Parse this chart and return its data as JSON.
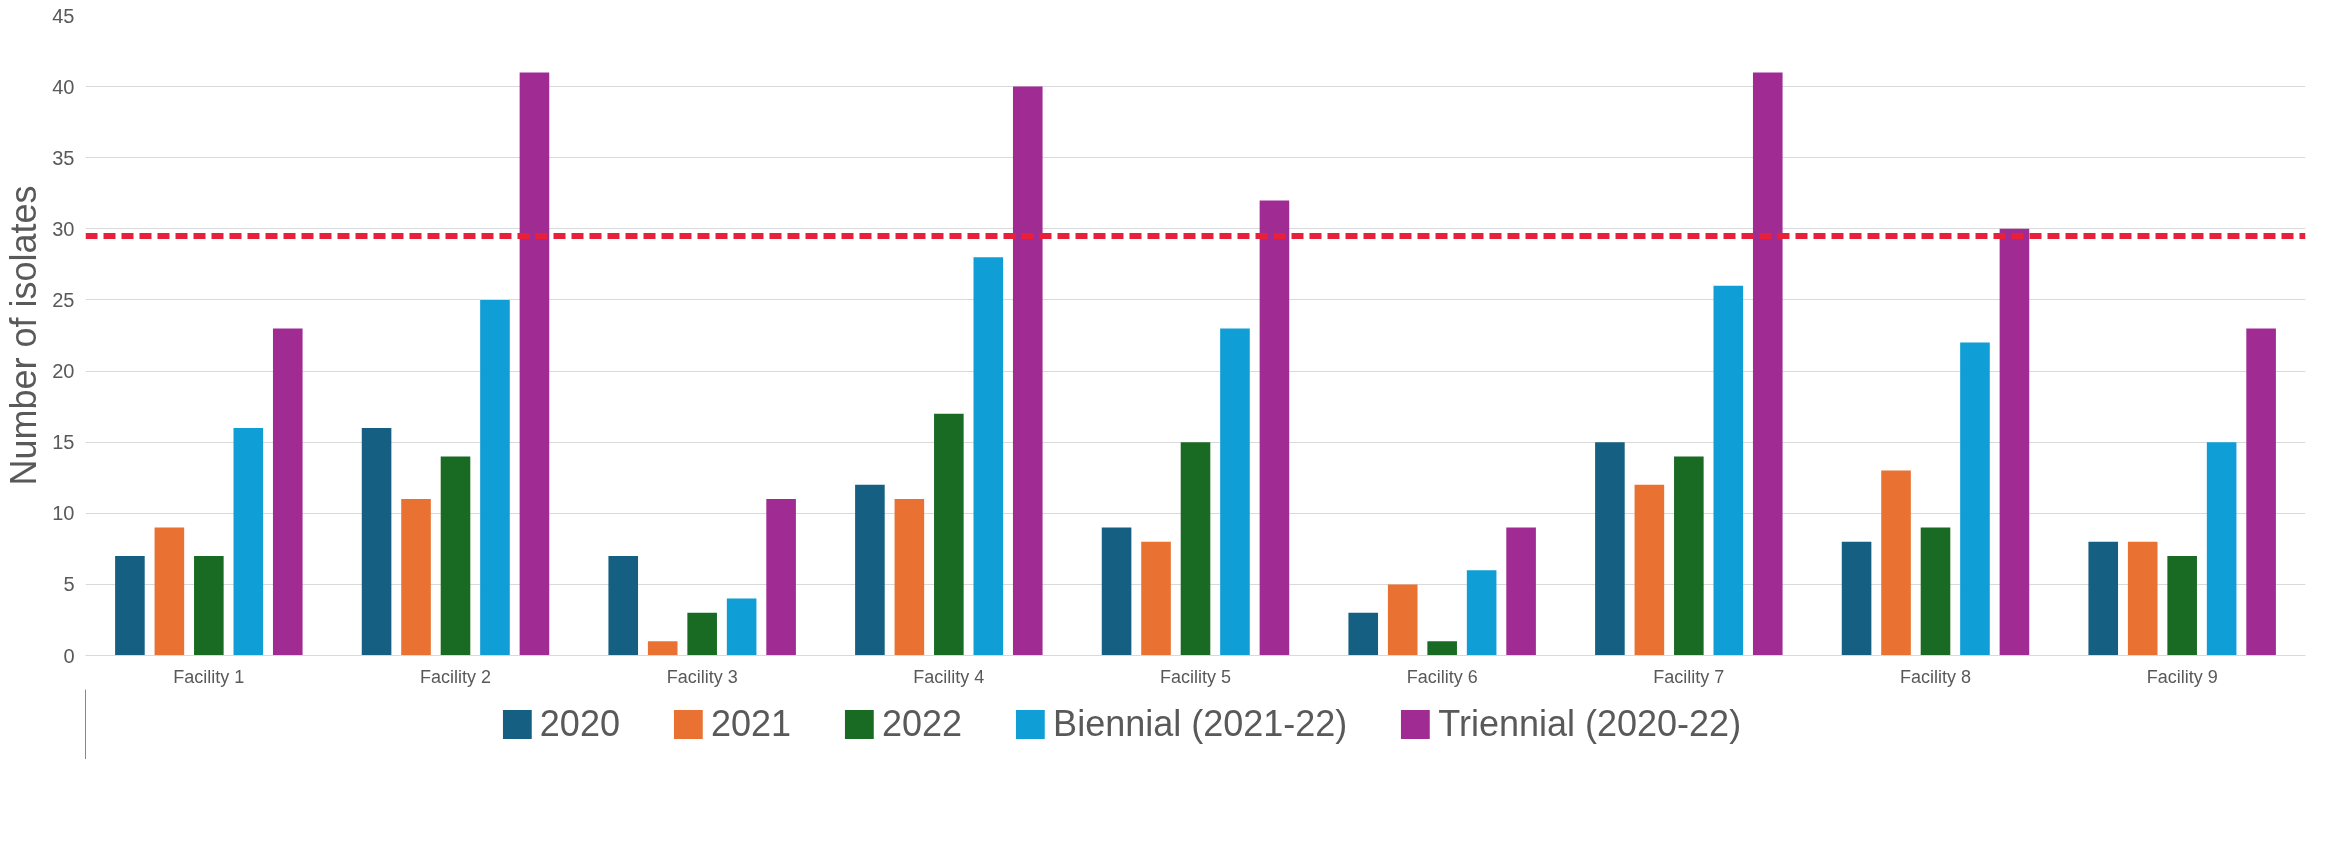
{
  "chart_data": {
    "type": "bar",
    "ylabel": "Number of isolates",
    "categories": [
      "Facility 1",
      "Facility 2",
      "Facility 3",
      "Facility 4",
      "Facility 5",
      "Facility 6",
      "Facility 7",
      "Facility 8",
      "Facility 9"
    ],
    "series": [
      {
        "name": "2020",
        "color": "#156082",
        "values": [
          7,
          16,
          7,
          12,
          9,
          3,
          15,
          8,
          8
        ]
      },
      {
        "name": "2021",
        "color": "#e97132",
        "values": [
          9,
          11,
          1,
          11,
          8,
          5,
          12,
          13,
          8
        ]
      },
      {
        "name": "2022",
        "color": "#196b24",
        "values": [
          7,
          14,
          3,
          17,
          15,
          1,
          14,
          9,
          7
        ]
      },
      {
        "name": "Biennial (2021-22)",
        "color": "#0f9ed5",
        "values": [
          16,
          25,
          4,
          28,
          23,
          6,
          26,
          22,
          15
        ]
      },
      {
        "name": "Triennial (2020-22)",
        "color": "#a02b93",
        "values": [
          23,
          41,
          11,
          40,
          32,
          9,
          41,
          30,
          23
        ]
      }
    ],
    "ylim": [
      0,
      45
    ],
    "yticks": [
      0,
      5,
      10,
      15,
      20,
      25,
      30,
      35,
      40,
      45
    ],
    "grid": "y",
    "legend": "bottom",
    "ref_lines": [
      {
        "axis": "y",
        "value": 29.5,
        "color": "#e8203a",
        "line_style": "dashed"
      }
    ]
  }
}
